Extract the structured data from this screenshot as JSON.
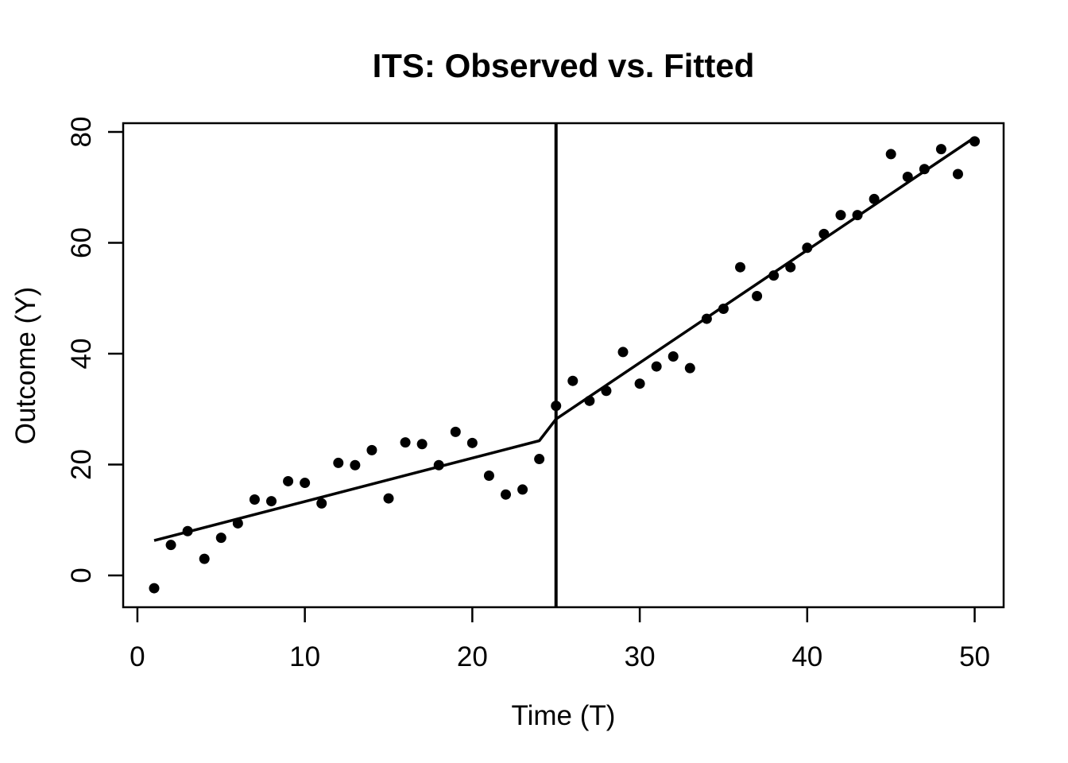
{
  "figure": {
    "background_color": "#ffffff",
    "foreground_color": "#000000"
  },
  "chart_data": {
    "type": "scatter",
    "title": "ITS: Observed vs. Fitted",
    "xlabel": "Time (T)",
    "ylabel": "Outcome (Y)",
    "xlim": [
      -0.85,
      51.73
    ],
    "ylim": [
      -5.73,
      81.58
    ],
    "x_ticks": [
      0,
      10,
      20,
      30,
      40,
      50
    ],
    "y_ticks": [
      0,
      20,
      40,
      60,
      80
    ],
    "grid": false,
    "legend_position": "none",
    "marker": "filled-circle",
    "point_color": "#000000",
    "line_color": "#000000",
    "series": [
      {
        "name": "Observed",
        "type": "points",
        "x": [
          1,
          2,
          3,
          4,
          5,
          6,
          7,
          8,
          9,
          10,
          11,
          12,
          13,
          14,
          15,
          16,
          17,
          18,
          19,
          20,
          21,
          22,
          23,
          24,
          25,
          26,
          27,
          28,
          29,
          30,
          31,
          32,
          33,
          34,
          35,
          36,
          37,
          38,
          39,
          40,
          41,
          42,
          43,
          44,
          45,
          46,
          47,
          48,
          49,
          50
        ],
        "y": [
          -2.3,
          5.5,
          8.0,
          3.0,
          6.8,
          9.4,
          13.7,
          13.4,
          17.0,
          16.7,
          13.0,
          20.3,
          19.9,
          22.6,
          13.9,
          24.0,
          23.7,
          19.9,
          25.9,
          23.9,
          18.0,
          14.6,
          15.5,
          21.0,
          30.6,
          35.1,
          31.5,
          33.3,
          40.3,
          34.6,
          37.7,
          39.5,
          37.4,
          46.3,
          48.1,
          55.6,
          50.4,
          54.1,
          55.6,
          59.1,
          61.6,
          65.0,
          65.0,
          67.9,
          76.0,
          71.9,
          73.3,
          76.9,
          72.4,
          78.3
        ]
      },
      {
        "name": "Fitted",
        "type": "line",
        "x": [
          1,
          24,
          25,
          50
        ],
        "y": [
          6.3,
          24.3,
          28.2,
          79.0
        ]
      },
      {
        "name": "Intervention",
        "type": "vline",
        "x": 25
      }
    ]
  }
}
